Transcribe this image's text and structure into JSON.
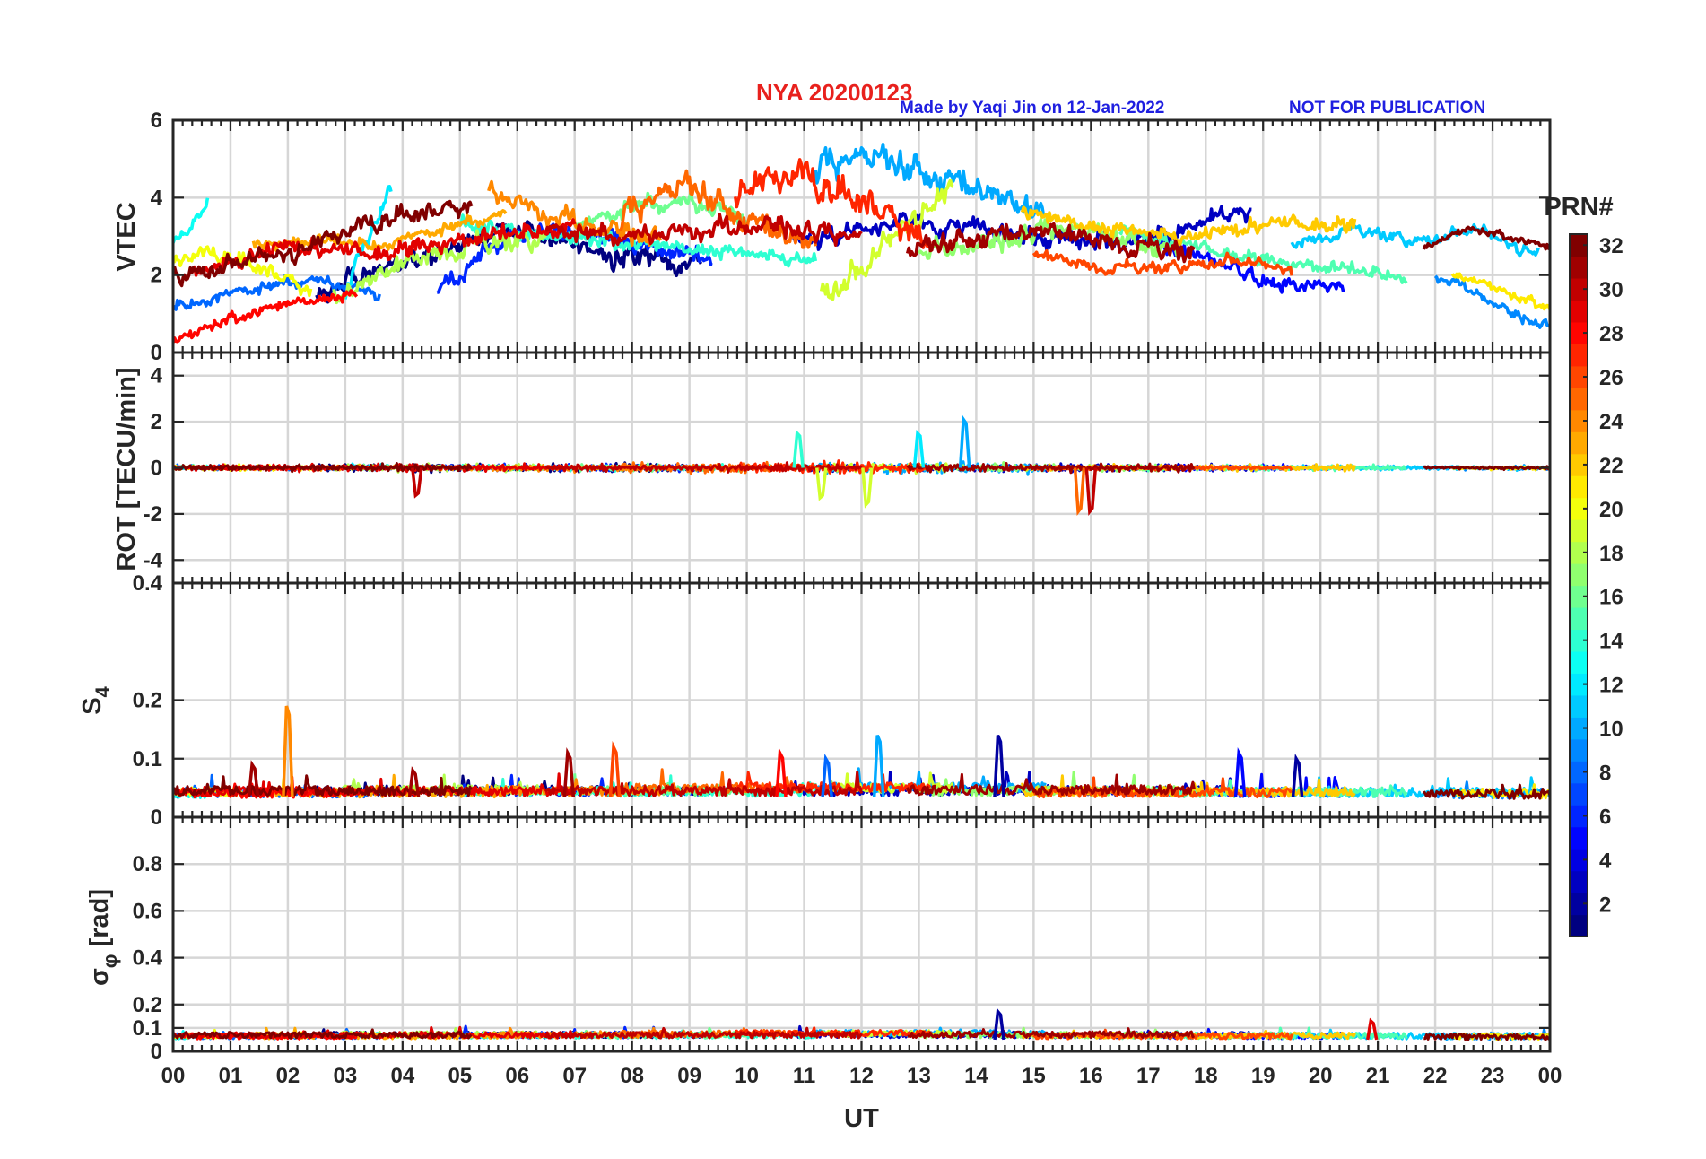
{
  "header": {
    "station": "NYA   20200123",
    "author_note": "Made by Yaqi Jin on 12-Jan-2022",
    "publication_note": "NOT FOR PUBLICATION",
    "station_color": "#e8211d",
    "note_color": "#1f1fe0"
  },
  "chart_data": [
    {
      "type": "line",
      "panel": "vtec",
      "ylabel": "VTEC",
      "ylim": [
        0,
        6
      ],
      "yticks": [
        "0",
        "2",
        "4",
        "6"
      ],
      "xlim": [
        0,
        24
      ],
      "grid": true,
      "series_shape": "one daytime-arched trace per PRN, typical values 1-4 TECU, peaks near 5-6 TECU around 11-14 UT",
      "series": [
        {
          "prn": 1,
          "start": 2.5,
          "end": 9.2,
          "base": [
            1.5,
            2.4,
            3.2,
            2.6,
            2.3
          ],
          "noise": 0.32
        },
        {
          "prn": 3,
          "start": 10.8,
          "end": 18.8,
          "base": [
            2.8,
            3.4,
            3.0,
            2.9,
            3.6
          ],
          "noise": 0.3
        },
        {
          "prn": 5,
          "start": 17.2,
          "end": 20.4,
          "base": [
            2.8,
            2.3,
            1.8,
            1.7
          ],
          "noise": 0.22
        },
        {
          "prn": 6,
          "start": 4.6,
          "end": 9.4,
          "base": [
            1.6,
            3.0,
            3.2,
            2.8,
            2.4
          ],
          "noise": 0.3
        },
        {
          "prn": 8,
          "start": 0.0,
          "end": 3.6,
          "base": [
            1.2,
            1.6,
            1.9,
            1.5
          ],
          "noise": 0.2
        },
        {
          "prn": 9,
          "start": 22.0,
          "end": 24.0,
          "base": [
            2.0,
            1.6,
            1.0,
            0.7
          ],
          "noise": 0.15
        },
        {
          "prn": 10,
          "start": 11.2,
          "end": 15.2,
          "base": [
            4.8,
            5.0,
            4.6,
            4.2,
            3.6
          ],
          "noise": 0.5
        },
        {
          "prn": 11,
          "start": 19.5,
          "end": 23.8,
          "base": [
            2.8,
            3.2,
            2.9,
            3.2,
            2.6
          ],
          "noise": 0.2
        },
        {
          "prn": 12,
          "start": 3.0,
          "end": 3.8,
          "base": [
            1.5,
            2.6,
            3.4,
            4.2
          ],
          "noise": 0.3
        },
        {
          "prn": 13,
          "start": 0.0,
          "end": 0.6,
          "base": [
            2.8,
            3.3,
            3.9
          ],
          "noise": 0.15
        },
        {
          "prn": 14,
          "start": 5.0,
          "end": 11.2,
          "base": [
            3.4,
            3.0,
            2.8,
            2.6,
            2.4
          ],
          "noise": 0.25
        },
        {
          "prn": 15,
          "start": 16.5,
          "end": 21.5,
          "base": [
            3.2,
            2.8,
            2.4,
            2.2,
            2.0
          ],
          "noise": 0.22
        },
        {
          "prn": 16,
          "start": 7.0,
          "end": 10.0,
          "base": [
            3.2,
            3.8,
            3.9,
            3.5
          ],
          "noise": 0.3
        },
        {
          "prn": 17,
          "start": 13.0,
          "end": 17.5,
          "base": [
            2.6,
            2.8,
            3.2,
            3.0,
            2.6
          ],
          "noise": 0.3
        },
        {
          "prn": 18,
          "start": 2.8,
          "end": 6.5,
          "base": [
            1.4,
            2.4,
            2.8,
            3.0
          ],
          "noise": 0.35
        },
        {
          "prn": 19,
          "start": 11.3,
          "end": 13.6,
          "base": [
            1.6,
            2.2,
            3.6,
            4.2
          ],
          "noise": 0.45
        },
        {
          "prn": 20,
          "start": 0.0,
          "end": 2.4,
          "base": [
            2.4,
            2.6,
            2.2,
            1.6
          ],
          "noise": 0.25
        },
        {
          "prn": 21,
          "start": 22.3,
          "end": 24.0,
          "base": [
            2.0,
            1.8,
            1.4,
            1.2
          ],
          "noise": 0.15
        },
        {
          "prn": 22,
          "start": 14.8,
          "end": 20.6,
          "base": [
            3.6,
            3.2,
            3.0,
            3.4,
            3.3
          ],
          "noise": 0.25
        },
        {
          "prn": 23,
          "start": 1.4,
          "end": 5.8,
          "base": [
            2.8,
            2.9,
            2.8,
            3.2,
            3.6
          ],
          "noise": 0.2
        },
        {
          "prn": 24,
          "start": 5.5,
          "end": 8.5,
          "base": [
            4.2,
            3.6,
            3.2,
            3.0
          ],
          "noise": 0.3
        },
        {
          "prn": 25,
          "start": 7.8,
          "end": 11.2,
          "base": [
            3.5,
            4.3,
            3.4,
            2.8
          ],
          "noise": 0.45
        },
        {
          "prn": 26,
          "start": 15.0,
          "end": 19.5,
          "base": [
            2.6,
            2.2,
            2.2,
            2.4,
            2.2
          ],
          "noise": 0.2
        },
        {
          "prn": 27,
          "start": 9.8,
          "end": 13.2,
          "base": [
            4.3,
            4.6,
            4.0,
            2.8
          ],
          "noise": 0.5
        },
        {
          "prn": 28,
          "start": 0.0,
          "end": 3.2,
          "base": [
            0.3,
            0.9,
            1.3,
            1.5
          ],
          "noise": 0.18
        },
        {
          "prn": 29,
          "start": 0.3,
          "end": 7.0,
          "base": [
            2.0,
            2.8,
            2.6,
            3.0,
            3.3
          ],
          "noise": 0.28
        },
        {
          "prn": 30,
          "start": 6.5,
          "end": 12.0,
          "base": [
            3.2,
            3.0,
            3.2,
            3.3,
            2.9
          ],
          "noise": 0.3
        },
        {
          "prn": 31,
          "start": 12.8,
          "end": 17.8,
          "base": [
            2.6,
            3.0,
            3.2,
            2.8,
            2.6
          ],
          "noise": 0.35
        },
        {
          "prn": 32,
          "start": 0.0,
          "end": 5.2,
          "base": [
            2.0,
            2.4,
            2.9,
            3.6,
            3.8
          ],
          "noise": 0.3
        },
        {
          "prn": 32,
          "start": 21.8,
          "end": 24.0,
          "base": [
            2.7,
            3.2,
            3.0,
            2.7
          ],
          "noise": 0.12
        }
      ]
    },
    {
      "type": "line",
      "panel": "rot",
      "ylabel": "ROT [TECU/min]",
      "ylim": [
        -5,
        5
      ],
      "yticks": [
        "-4",
        "-2",
        "0",
        "2",
        "4"
      ],
      "xlim": [
        0,
        24
      ],
      "grid": true,
      "series_shape": "per-PRN traces oscillating around 0 TECU/min, amplitude about 0.3, larger bursts 03-05, 10-16 UT",
      "spikes": [
        {
          "x": 4.25,
          "value": -1.2,
          "prn": 30
        },
        {
          "x": 10.9,
          "value": 1.5,
          "prn": 14
        },
        {
          "x": 11.3,
          "value": -1.3,
          "prn": 19
        },
        {
          "x": 12.1,
          "value": -1.6,
          "prn": 19
        },
        {
          "x": 13.0,
          "value": 1.5,
          "prn": 12
        },
        {
          "x": 13.8,
          "value": 2.1,
          "prn": 10
        },
        {
          "x": 15.8,
          "value": -1.9,
          "prn": 25
        },
        {
          "x": 16.0,
          "value": -1.9,
          "prn": 30
        }
      ]
    },
    {
      "type": "line",
      "panel": "s4",
      "ylabel": "S4",
      "ylim": [
        0,
        0.4
      ],
      "yticks": [
        "0",
        "0.1",
        "0.2",
        "0.4"
      ],
      "xlim": [
        0,
        24
      ],
      "grid": true,
      "series_shape": "per-PRN traces near 0.02-0.06 with sparse spikes",
      "spikes": [
        {
          "x": 1.4,
          "value": 0.09,
          "prn": 31
        },
        {
          "x": 2.0,
          "value": 0.19,
          "prn": 24
        },
        {
          "x": 4.2,
          "value": 0.08,
          "prn": 31
        },
        {
          "x": 6.9,
          "value": 0.11,
          "prn": 31
        },
        {
          "x": 7.7,
          "value": 0.12,
          "prn": 26
        },
        {
          "x": 10.6,
          "value": 0.11,
          "prn": 28
        },
        {
          "x": 11.4,
          "value": 0.1,
          "prn": 8
        },
        {
          "x": 12.3,
          "value": 0.14,
          "prn": 10
        },
        {
          "x": 14.4,
          "value": 0.14,
          "prn": 2
        },
        {
          "x": 18.6,
          "value": 0.11,
          "prn": 5
        },
        {
          "x": 19.6,
          "value": 0.1,
          "prn": 2
        }
      ]
    },
    {
      "type": "line",
      "panel": "sigma_phi",
      "ylabel": "σ_φ [rad]",
      "ylim": [
        0,
        1
      ],
      "yticks": [
        "0",
        "0.1",
        "0.2",
        "0.4",
        "0.6",
        "0.8"
      ],
      "xlim": [
        0,
        24
      ],
      "grid": true,
      "series_shape": "per-PRN traces near 0.04-0.08 rad, slightly higher 10-13 UT",
      "spikes": [
        {
          "x": 14.4,
          "value": 0.17,
          "prn": 2
        },
        {
          "x": 20.9,
          "value": 0.13,
          "prn": 29
        }
      ]
    }
  ],
  "xaxis": {
    "label": "UT",
    "ticks": [
      "00",
      "01",
      "02",
      "03",
      "04",
      "05",
      "06",
      "07",
      "08",
      "09",
      "10",
      "11",
      "12",
      "13",
      "14",
      "15",
      "16",
      "17",
      "18",
      "19",
      "20",
      "21",
      "22",
      "23",
      "00"
    ]
  },
  "colorbar": {
    "title": "PRN#",
    "range": [
      1,
      32
    ],
    "ticks": [
      "2",
      "4",
      "6",
      "8",
      "10",
      "12",
      "14",
      "16",
      "18",
      "20",
      "22",
      "24",
      "26",
      "28",
      "30",
      "32"
    ],
    "colormap": "jet"
  }
}
